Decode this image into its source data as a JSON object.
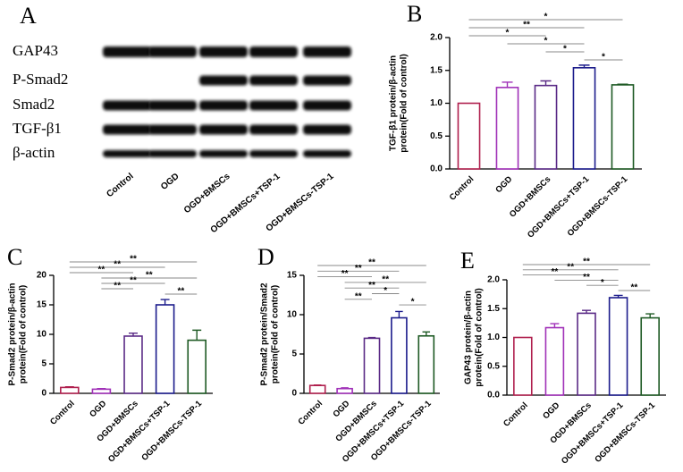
{
  "blot": {
    "panel_label": "A",
    "proteins": [
      "GAP43",
      "P-Smad2",
      "Smad2",
      "TGF-β1",
      "β-actin"
    ],
    "lanes": [
      "Control",
      "OGD",
      "OGD+BMSCs",
      "OGD+BMSCs+TSP-1",
      "OGD+BMSCs-TSP-1"
    ]
  },
  "chart_data": [
    {
      "type": "bar",
      "panel_label": "B",
      "ylabel": [
        "TGF-β1 protein/β-actin",
        "protein(Fold of control)"
      ],
      "categories": [
        "Control",
        "OGD",
        "OGD+BMSCs",
        "OGD+BMSCs+TSP-1",
        "OGD+BMSCs-TSP-1"
      ],
      "values": [
        1.0,
        1.24,
        1.27,
        1.54,
        1.28
      ],
      "errors": [
        0,
        0.08,
        0.07,
        0.04,
        0.01
      ],
      "colors": [
        "#b0204e",
        "#a030b8",
        "#5a2a86",
        "#1c1c8c",
        "#1e5a24"
      ],
      "ylim": [
        0,
        2.0
      ],
      "yticks": [
        {
          "value": 0,
          "label": "0.0"
        },
        0.5,
        {
          "value": 1,
          "label": "1.0"
        },
        1.5,
        {
          "value": 2,
          "label": "2.0"
        }
      ],
      "significance": [
        {
          "label": "*",
          "from": 0,
          "to": 4
        },
        {
          "label": "**",
          "from": 0,
          "to": 3
        },
        {
          "label": "*",
          "from": 0,
          "to": 2
        },
        {
          "label": "*",
          "from": 1,
          "to": 3
        },
        {
          "label": "*",
          "from": 2,
          "to": 3
        },
        {
          "label": "*",
          "from": 3,
          "to": 4
        }
      ]
    },
    {
      "type": "bar",
      "panel_label": "C",
      "ylabel": [
        "P-Smad2 protein/β-actin",
        "protein(Fold of control)"
      ],
      "categories": [
        "Control",
        "OGD",
        "OGD+BMSCs",
        "OGD+BMSCs+TSP-1",
        "OGD+BMSCs-TSP-1"
      ],
      "values": [
        1.0,
        0.7,
        9.7,
        15.0,
        9.0
      ],
      "errors": [
        0.1,
        0.1,
        0.5,
        0.9,
        1.7
      ],
      "colors": [
        "#b0204e",
        "#a030b8",
        "#5a2a86",
        "#1c1c8c",
        "#1e5a24"
      ],
      "ylim": [
        0,
        20
      ],
      "yticks": [
        0,
        5,
        10,
        15,
        20
      ],
      "significance": [
        {
          "label": "**",
          "from": 0,
          "to": 4
        },
        {
          "label": "**",
          "from": 0,
          "to": 3
        },
        {
          "label": "**",
          "from": 0,
          "to": 2
        },
        {
          "label": "**",
          "from": 1,
          "to": 4
        },
        {
          "label": "**",
          "from": 1,
          "to": 3
        },
        {
          "label": "**",
          "from": 1,
          "to": 2
        },
        {
          "label": "**",
          "from": 3,
          "to": 4
        }
      ]
    },
    {
      "type": "bar",
      "panel_label": "D",
      "ylabel": [
        "P-Smad2 protein/Smad2",
        "protein(Fold of control)"
      ],
      "categories": [
        "Control",
        "OGD",
        "OGD+BMSCs",
        "OGD+BMSCs+TSP-1",
        "OGD+BMSCs-TSP-1"
      ],
      "values": [
        1.0,
        0.6,
        7.0,
        9.6,
        7.3
      ],
      "errors": [
        0.05,
        0.1,
        0.1,
        0.8,
        0.5
      ],
      "colors": [
        "#b0204e",
        "#a030b8",
        "#5a2a86",
        "#1c1c8c",
        "#1e5a24"
      ],
      "ylim": [
        0,
        15
      ],
      "yticks": [
        0,
        5,
        10,
        15
      ],
      "significance": [
        {
          "label": "**",
          "from": 0,
          "to": 4
        },
        {
          "label": "**",
          "from": 0,
          "to": 3
        },
        {
          "label": "**",
          "from": 0,
          "to": 2
        },
        {
          "label": "**",
          "from": 1,
          "to": 4
        },
        {
          "label": "**",
          "from": 1,
          "to": 3
        },
        {
          "label": "*",
          "from": 2,
          "to": 3
        },
        {
          "label": "**",
          "from": 1,
          "to": 2
        },
        {
          "label": "*",
          "from": 3,
          "to": 4
        }
      ]
    },
    {
      "type": "bar",
      "panel_label": "E",
      "ylabel": [
        "GAP43 protein/β-actin",
        "protein(Fold of control)"
      ],
      "categories": [
        "Control",
        "OGD",
        "OGD+BMSCs",
        "OGD+BMSCs+TSP-1",
        "OGD+BMSCs-TSP-1"
      ],
      "values": [
        1.0,
        1.17,
        1.42,
        1.69,
        1.34
      ],
      "errors": [
        0,
        0.07,
        0.05,
        0.04,
        0.07
      ],
      "colors": [
        "#b0204e",
        "#a030b8",
        "#5a2a86",
        "#1c1c8c",
        "#1e5a24"
      ],
      "ylim": [
        0,
        2.0
      ],
      "yticks": [
        {
          "value": 0,
          "label": "0.0"
        },
        0.5,
        {
          "value": 1,
          "label": "1.0"
        },
        1.5,
        {
          "value": 2,
          "label": "2.0"
        }
      ],
      "significance": [
        {
          "label": "**",
          "from": 0,
          "to": 4
        },
        {
          "label": "**",
          "from": 0,
          "to": 3
        },
        {
          "label": "**",
          "from": 0,
          "to": 2
        },
        {
          "label": "**",
          "from": 1,
          "to": 3
        },
        {
          "label": "*",
          "from": 2,
          "to": 3
        },
        {
          "label": "**",
          "from": 3,
          "to": 4
        }
      ]
    }
  ]
}
